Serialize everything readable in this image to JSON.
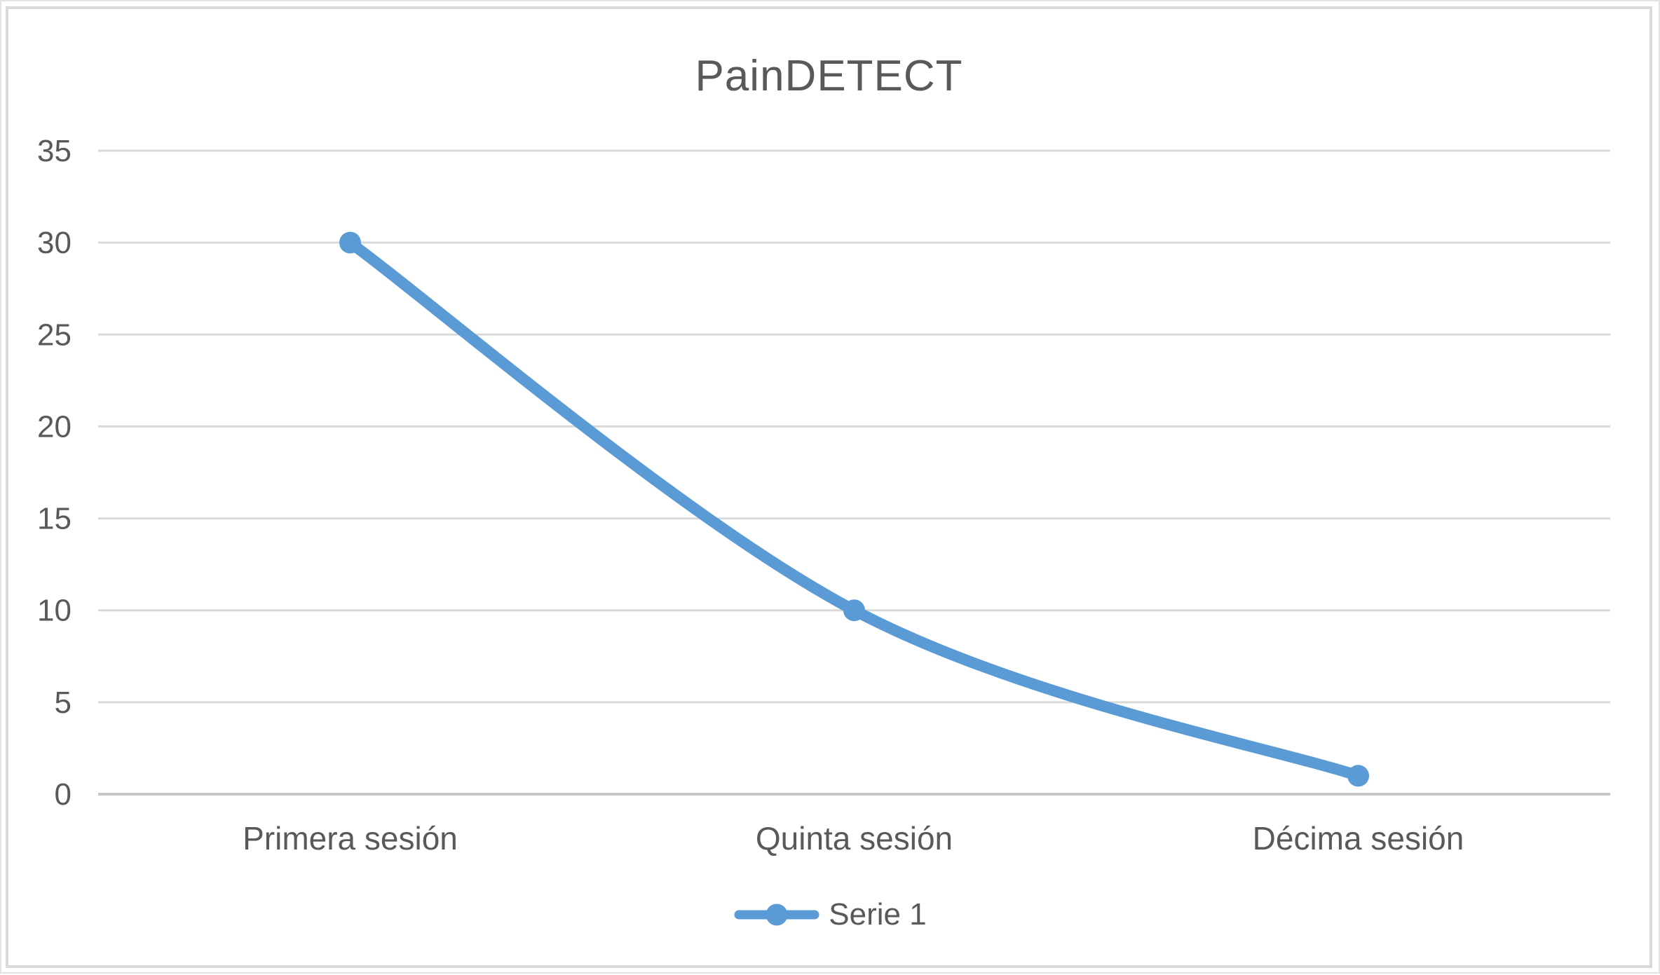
{
  "chart_data": {
    "type": "line",
    "title": "PainDETECT",
    "categories": [
      "Primera sesión",
      "Quinta sesión",
      "Décima sesión"
    ],
    "series": [
      {
        "name": "Serie 1",
        "values": [
          30,
          10,
          1
        ]
      }
    ],
    "ylim": [
      0,
      35
    ],
    "ytick_step": 5,
    "yticks": [
      35,
      30,
      25,
      20,
      15,
      10,
      5,
      0
    ],
    "xlabel": "",
    "ylabel": "",
    "grid": true,
    "smooth": true,
    "marker": "circle",
    "legend_position": "bottom",
    "colors": {
      "series": "#5B9BD5",
      "gridline": "#D9D9D9",
      "axis_line": "#C6C6C6",
      "text": "#595959",
      "frame_border": "#D9D9D9",
      "background": "#FFFFFF"
    }
  }
}
